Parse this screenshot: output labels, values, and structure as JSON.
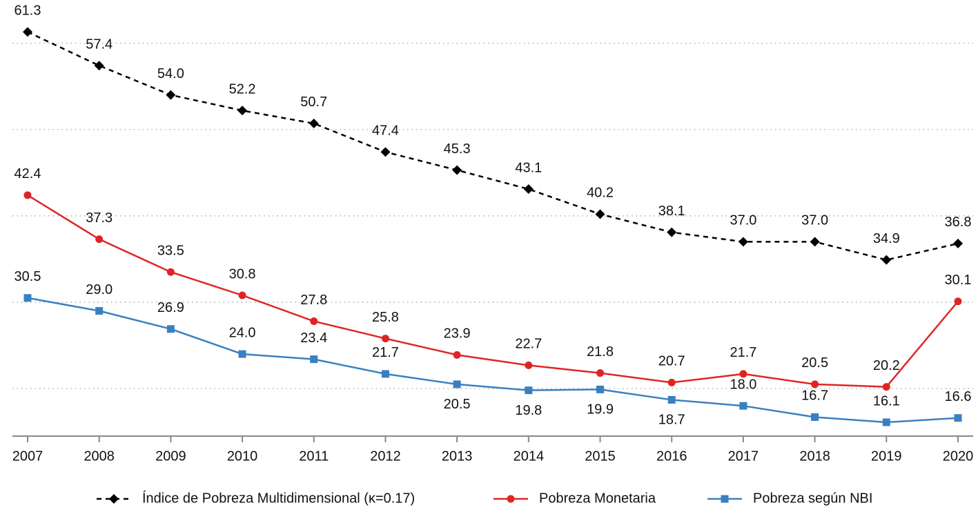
{
  "chart_data": {
    "type": "line",
    "categories": [
      "2007",
      "2008",
      "2009",
      "2010",
      "2011",
      "2012",
      "2013",
      "2014",
      "2015",
      "2016",
      "2017",
      "2018",
      "2019",
      "2020"
    ],
    "series": [
      {
        "name": "Índice de Pobreza Multidimensional (κ=0.17)",
        "color": "#000000",
        "dash": true,
        "marker": "diamond",
        "values": [
          61.3,
          57.4,
          54.0,
          52.2,
          50.7,
          47.4,
          45.3,
          43.1,
          40.2,
          38.1,
          37.0,
          37.0,
          34.9,
          36.8
        ],
        "value_labels": [
          "61.3",
          "57.4",
          "54.0",
          "52.2",
          "50.7",
          "47.4",
          "45.3",
          "43.1",
          "40.2",
          "38.1",
          "37.0",
          "37.0",
          "34.9",
          "36.8"
        ]
      },
      {
        "name": "Pobreza Monetaria",
        "color": "#e02424",
        "dash": false,
        "marker": "circle",
        "values": [
          42.4,
          37.3,
          33.5,
          30.8,
          27.8,
          25.8,
          23.9,
          22.7,
          21.8,
          20.7,
          21.7,
          20.5,
          20.2,
          30.1
        ],
        "value_labels": [
          "42.4",
          "37.3",
          "33.5",
          "30.8",
          "27.8",
          "25.8",
          "23.9",
          "22.7",
          "21.8",
          "20.7",
          "21.7",
          "20.5",
          "20.2",
          "30.1"
        ]
      },
      {
        "name": "Pobreza según NBI",
        "color": "#3a80c0",
        "dash": false,
        "marker": "square",
        "values": [
          30.5,
          29.0,
          26.9,
          24.0,
          23.4,
          21.7,
          20.5,
          19.8,
          19.9,
          18.7,
          18.0,
          16.7,
          16.1,
          16.6
        ],
        "value_labels": [
          "30.5",
          "29.0",
          "26.9",
          "24.0",
          "23.4",
          "21.7",
          "20.5",
          "19.8",
          "19.9",
          "18.7",
          "18.0",
          "16.7",
          "16.1",
          "16.6"
        ]
      }
    ],
    "ylim": [
      14.5,
      62.6
    ],
    "yticks": [
      20,
      30,
      40,
      50,
      60
    ],
    "grid": true,
    "legend": "bottom"
  }
}
